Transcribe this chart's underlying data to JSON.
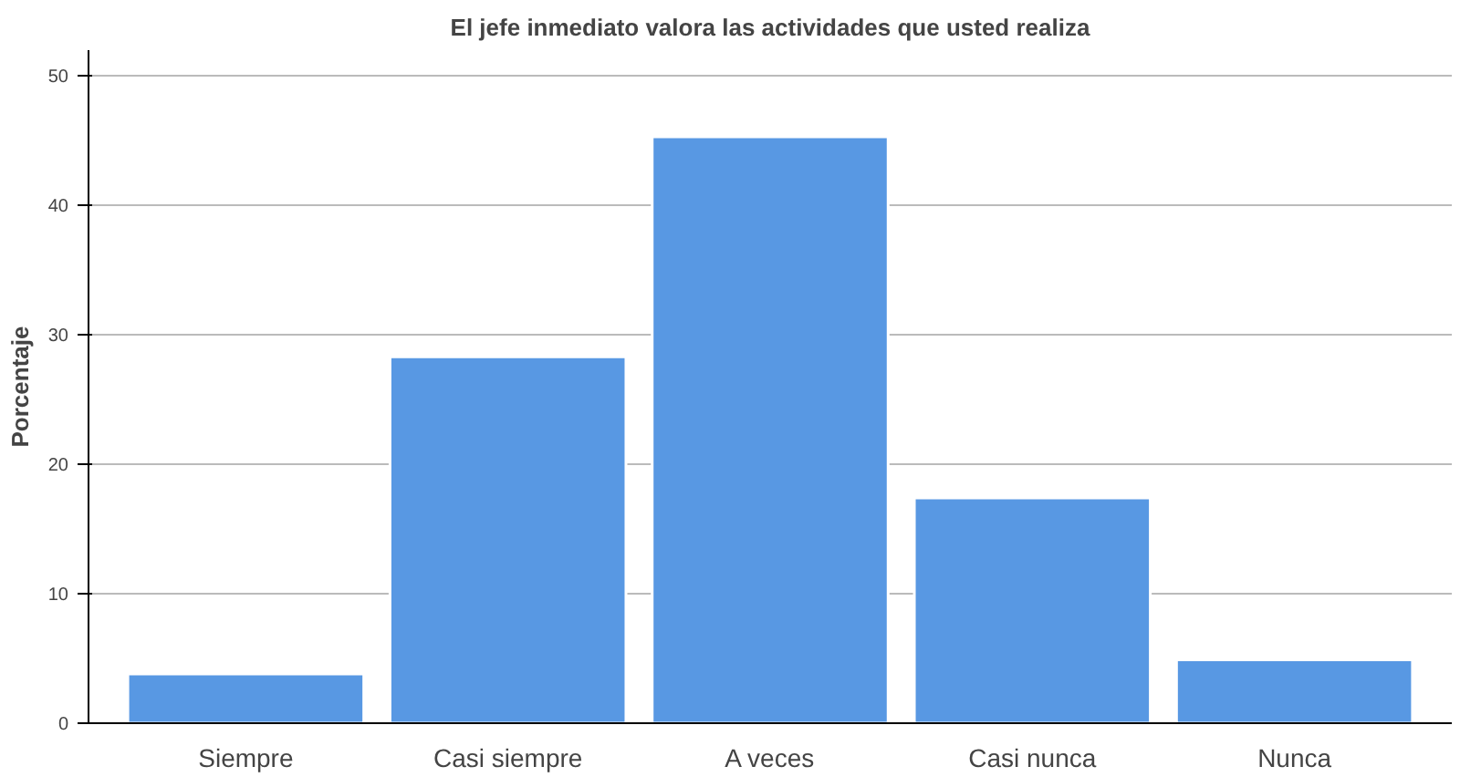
{
  "chart_data": {
    "type": "bar",
    "title": "El jefe inmediato valora las actividades que usted realiza",
    "ylabel": "Porcentaje",
    "categories": [
      "Siempre",
      "Casi siempre",
      "A veces",
      "Casi nunca",
      "Nunca"
    ],
    "values": [
      3.8,
      28.3,
      45.3,
      17.4,
      4.9
    ],
    "color": "#5898e3",
    "ylim": [
      0,
      52
    ],
    "yticks": [
      0,
      10,
      20,
      30,
      40,
      50
    ],
    "grid": "y"
  }
}
